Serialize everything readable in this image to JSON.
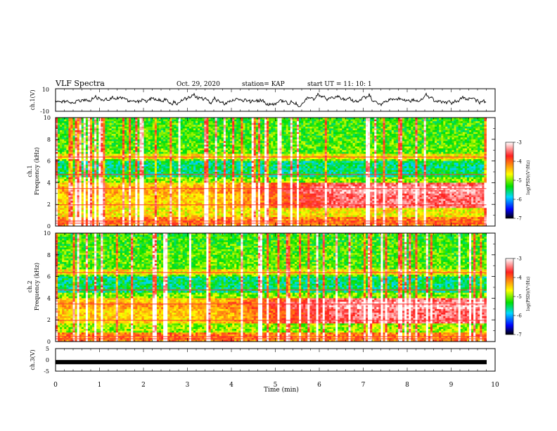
{
  "header": {
    "title": "VLF Spectra",
    "date": "Oct. 29, 2020",
    "station": "station= KAP",
    "start": "start UT =   11: 10: 1"
  },
  "chart_data": [
    {
      "type": "line",
      "panel": "waveform-ch1",
      "ylabel": "ch.1(V)",
      "ylim": [
        -10,
        10
      ],
      "yticks": [
        "10",
        "-10"
      ],
      "xlim": [
        0,
        10
      ],
      "x_extent_min": 9.8,
      "description_values": {
        "typical_range": [
          -5,
          5
        ]
      },
      "color": "#000000"
    },
    {
      "type": "heatmap",
      "panel": "spectrogram-ch1",
      "ylabel": "ch.1\nFrequency (kHz)",
      "ylabel_line1": "ch.1",
      "ylabel_line2": "Frequency (kHz)",
      "ylim": [
        0,
        10
      ],
      "yticks": [
        "0",
        "2",
        "4",
        "6",
        "8",
        "10"
      ],
      "xlim": [
        0,
        10
      ],
      "data_extent_min": 9.8,
      "colorbar": {
        "label": "log(PSD)(V²/Hz)",
        "range": [
          -7,
          -3
        ],
        "ticks": [
          "-3",
          "-4",
          "-5",
          "-6",
          "-7"
        ],
        "colors": [
          "#ffffff",
          "#ff2020",
          "#ffff00",
          "#00e000",
          "#00d8ff",
          "#0000ff",
          "#000000"
        ]
      }
    },
    {
      "type": "heatmap",
      "panel": "spectrogram-ch2",
      "ylabel_line1": "ch.2",
      "ylabel_line2": "Frequency (kHz)",
      "ylim": [
        0,
        10
      ],
      "yticks": [
        "0",
        "2",
        "4",
        "6",
        "8",
        "10"
      ],
      "xlim": [
        0,
        10
      ],
      "data_extent_min": 9.8,
      "colorbar": {
        "label": "log(PSD)(V²/Hz)",
        "range": [
          -7,
          -3
        ],
        "ticks": [
          "-3",
          "-4",
          "-5",
          "-6",
          "-7"
        ]
      }
    },
    {
      "type": "line",
      "panel": "waveform-ch3",
      "ylabel": "ch.3(V)",
      "ylim": [
        -5,
        5
      ],
      "yticks": [
        "5",
        "0",
        "-5"
      ],
      "xlim": [
        0,
        10
      ],
      "value_level": -1,
      "xlabel": "Time  (min)",
      "xticks": [
        "0",
        "1",
        "2",
        "3",
        "4",
        "5",
        "6",
        "7",
        "8",
        "9",
        "10"
      ]
    }
  ]
}
